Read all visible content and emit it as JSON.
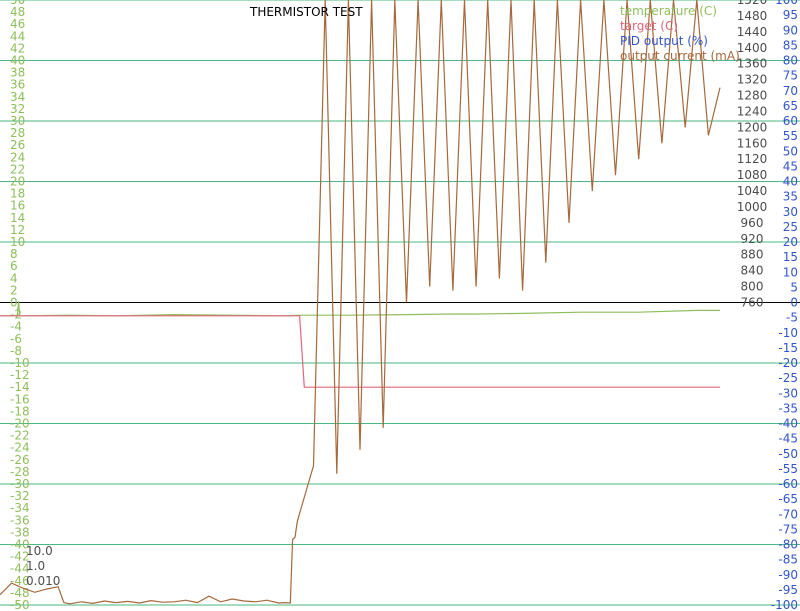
{
  "chart_data": {
    "type": "line",
    "title": "THERMISTOR TEST",
    "legend_placement": "top-right",
    "grid": true,
    "pid_values": [
      "10.0",
      "1.0",
      "0.010"
    ],
    "axes": {
      "left": {
        "label": "temperature (C)",
        "min": -50,
        "max": 50,
        "step": 2,
        "color": "#8fbe5c"
      },
      "right1": {
        "label": "output current (mA)",
        "min": 0,
        "max": 1520,
        "step": 40,
        "color": "#4d4d4d"
      },
      "right2": {
        "label": "PID output (%)",
        "min": -100,
        "max": 100,
        "step": 5,
        "color": "#3355cc"
      }
    },
    "series": [
      {
        "name": "temperature (C)",
        "color": "#8fbe5c",
        "axis": "left",
        "x": [
          0,
          10,
          15,
          16,
          17,
          60,
          100,
          150,
          200,
          240,
          260,
          300,
          350,
          390,
          410,
          450,
          500,
          550,
          600,
          620
        ],
        "values": [
          -2.2,
          -2.2,
          -2.1,
          0.2,
          -2.2,
          -2.1,
          -2.2,
          -2.0,
          -2.1,
          -2.2,
          -2.1,
          -2.1,
          -2.0,
          -1.9,
          -1.9,
          -1.8,
          -1.6,
          -1.6,
          -1.3,
          -1.3
        ]
      },
      {
        "name": "target (C)",
        "color": "#e0667a",
        "axis": "left",
        "x": [
          0,
          258,
          262,
          620
        ],
        "values": [
          -2.2,
          -2.2,
          -14,
          -14
        ]
      },
      {
        "name": "PID output (%)",
        "color": "#3355cc",
        "axis": "right2",
        "x": [],
        "values": []
      },
      {
        "name": "output current (mA)",
        "color": "#a5693d",
        "axis": "right1",
        "x": [
          0,
          10,
          20,
          30,
          40,
          50,
          55,
          60,
          70,
          80,
          90,
          100,
          110,
          120,
          130,
          140,
          150,
          160,
          170,
          180,
          190,
          200,
          210,
          220,
          230,
          240,
          245,
          250,
          252,
          254,
          256,
          260,
          270,
          280,
          290,
          300,
          310,
          320,
          330,
          340,
          350,
          360,
          370,
          380,
          390,
          400,
          410,
          420,
          430,
          440,
          450,
          460,
          470,
          480,
          490,
          500,
          510,
          520,
          530,
          540,
          550,
          560,
          570,
          580,
          590,
          600,
          610,
          620
        ],
        "values": [
          26,
          55,
          42,
          32,
          40,
          46,
          6,
          3,
          8,
          4,
          10,
          6,
          9,
          5,
          11,
          7,
          8,
          12,
          6,
          22,
          8,
          15,
          10,
          8,
          12,
          5,
          6,
          5,
          165,
          170,
          210,
          250,
          350,
          1520,
          330,
          1520,
          390,
          1520,
          445,
          1520,
          760,
          1520,
          800,
          1520,
          790,
          1520,
          800,
          1520,
          820,
          1520,
          790,
          1520,
          860,
          1520,
          960,
          1520,
          1040,
          1520,
          1080,
          1520,
          1120,
          1520,
          1160,
          1520,
          1200,
          1520,
          1180,
          1300
        ]
      }
    ]
  }
}
